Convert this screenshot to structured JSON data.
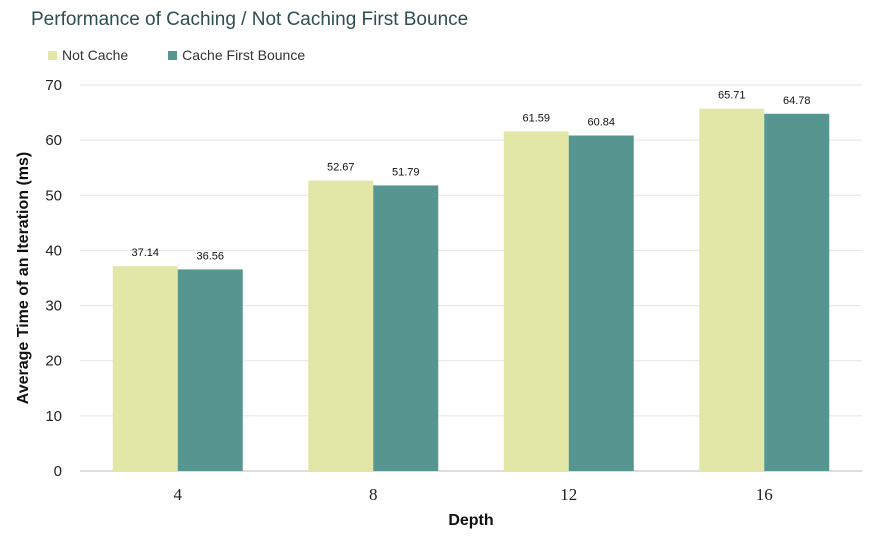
{
  "chart_data": {
    "type": "bar",
    "title": "Performance of Caching / Not Caching First Bounce",
    "xlabel": "Depth",
    "ylabel": "Average Time of an Iteration (ms)",
    "categories": [
      "4",
      "8",
      "12",
      "16"
    ],
    "series": [
      {
        "name": "Not Cache",
        "color": "#e2e7a8",
        "values": [
          37.14,
          52.67,
          61.59,
          65.71
        ]
      },
      {
        "name": "Cache First Bounce",
        "color": "#579591",
        "values": [
          36.56,
          51.79,
          60.84,
          64.78
        ]
      }
    ],
    "ylim": [
      0,
      70
    ],
    "yticks": [
      0,
      10,
      20,
      30,
      40,
      50,
      60,
      70
    ],
    "grid": true,
    "legend": "top-left"
  }
}
